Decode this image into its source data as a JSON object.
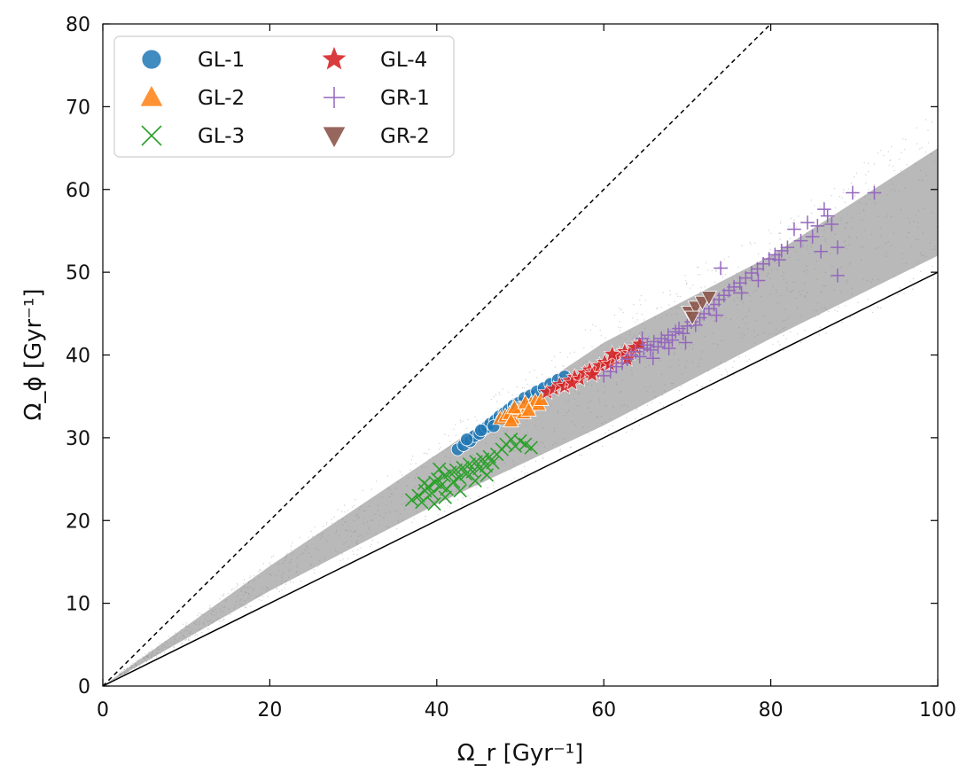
{
  "chart_data": {
    "type": "scatter",
    "title": "",
    "xlabel": "Ω_r [Gyr⁻¹]",
    "ylabel": "Ω_ϕ [Gyr⁻¹]",
    "xlim": [
      0,
      100
    ],
    "ylim": [
      0,
      80
    ],
    "xticks": [
      0,
      20,
      40,
      60,
      80,
      100
    ],
    "yticks": [
      0,
      10,
      20,
      30,
      40,
      50,
      60,
      70,
      80
    ],
    "grid": false,
    "legend_position": "top-left",
    "reference_lines": [
      {
        "name": "dashed-line",
        "style": "dashed",
        "points": [
          [
            0,
            0
          ],
          [
            80,
            80
          ]
        ]
      },
      {
        "name": "solid-line",
        "style": "solid",
        "points": [
          [
            0,
            0
          ],
          [
            100,
            50
          ]
        ]
      }
    ],
    "background": {
      "name": "all-stars",
      "color": "#808080",
      "description": "dense grey cloud of stars between the two lines",
      "envelope_upper": [
        [
          0,
          0
        ],
        [
          20,
          14.5
        ],
        [
          40,
          28
        ],
        [
          60,
          41.5
        ],
        [
          80,
          52
        ],
        [
          100,
          65
        ]
      ],
      "envelope_lower": [
        [
          0,
          0
        ],
        [
          20,
          11.5
        ],
        [
          40,
          22
        ],
        [
          60,
          31.5
        ],
        [
          80,
          42
        ],
        [
          100,
          52
        ]
      ]
    },
    "series": [
      {
        "name": "GL-1",
        "marker": "circle",
        "color": "#1f77b4",
        "points": [
          [
            42.5,
            28.6
          ],
          [
            43.2,
            29.1
          ],
          [
            44.0,
            29.6
          ],
          [
            44.5,
            30.2
          ],
          [
            45.1,
            30.5
          ],
          [
            45.6,
            31.0
          ],
          [
            46.0,
            31.3
          ],
          [
            46.4,
            31.7
          ],
          [
            47.0,
            32.1
          ],
          [
            47.5,
            32.6
          ],
          [
            48.1,
            33.0
          ],
          [
            48.6,
            33.4
          ],
          [
            49.2,
            33.9
          ],
          [
            49.8,
            34.2
          ],
          [
            50.5,
            34.8
          ],
          [
            51.2,
            35.1
          ],
          [
            52.0,
            35.6
          ],
          [
            52.8,
            36.0
          ],
          [
            53.6,
            36.5
          ],
          [
            54.5,
            37.0
          ],
          [
            55.3,
            37.4
          ],
          [
            43.6,
            29.8
          ],
          [
            45.3,
            30.9
          ],
          [
            46.8,
            31.4
          ],
          [
            47.8,
            32.2
          ],
          [
            49.5,
            33.6
          ]
        ]
      },
      {
        "name": "GL-2",
        "marker": "triangle-up",
        "color": "#ff7f0e",
        "points": [
          [
            47.6,
            32.3
          ],
          [
            48.2,
            32.6
          ],
          [
            48.7,
            32.9
          ],
          [
            49.1,
            32.4
          ],
          [
            49.6,
            33.2
          ],
          [
            50.0,
            33.5
          ],
          [
            50.4,
            33.0
          ],
          [
            50.9,
            33.8
          ],
          [
            51.3,
            34.1
          ],
          [
            51.8,
            34.4
          ],
          [
            52.2,
            34.0
          ],
          [
            49.3,
            33.6
          ],
          [
            50.6,
            34.2
          ],
          [
            48.9,
            32.0
          ],
          [
            51.0,
            33.3
          ],
          [
            52.5,
            34.6
          ]
        ]
      },
      {
        "name": "GL-3",
        "marker": "x",
        "color": "#2ca02c",
        "points": [
          [
            37.0,
            22.5
          ],
          [
            37.8,
            23.0
          ],
          [
            38.2,
            22.2
          ],
          [
            38.6,
            23.6
          ],
          [
            39.0,
            24.1
          ],
          [
            39.4,
            23.3
          ],
          [
            39.8,
            24.6
          ],
          [
            40.1,
            25.0
          ],
          [
            40.5,
            24.2
          ],
          [
            40.9,
            25.4
          ],
          [
            41.2,
            23.8
          ],
          [
            41.6,
            25.8
          ],
          [
            42.0,
            24.7
          ],
          [
            42.3,
            26.1
          ],
          [
            42.7,
            25.2
          ],
          [
            43.1,
            26.4
          ],
          [
            43.5,
            25.6
          ],
          [
            43.9,
            26.8
          ],
          [
            44.3,
            25.9
          ],
          [
            44.7,
            27.1
          ],
          [
            45.1,
            26.3
          ],
          [
            45.5,
            27.4
          ],
          [
            45.9,
            26.6
          ],
          [
            46.3,
            27.7
          ],
          [
            46.7,
            27.0
          ],
          [
            47.2,
            28.0
          ],
          [
            47.8,
            28.6
          ],
          [
            48.3,
            29.2
          ],
          [
            48.9,
            29.8
          ],
          [
            49.4,
            29.0
          ],
          [
            50.0,
            29.6
          ],
          [
            50.6,
            29.2
          ],
          [
            51.3,
            28.8
          ],
          [
            41.0,
            22.8
          ],
          [
            39.7,
            22.0
          ],
          [
            38.5,
            24.5
          ],
          [
            42.8,
            23.6
          ],
          [
            44.6,
            24.8
          ],
          [
            40.3,
            26.2
          ],
          [
            46.0,
            25.5
          ]
        ]
      },
      {
        "name": "GL-4",
        "marker": "star",
        "color": "#d62728",
        "points": [
          [
            53.2,
            35.5
          ],
          [
            54.0,
            35.9
          ],
          [
            54.7,
            36.4
          ],
          [
            55.3,
            36.2
          ],
          [
            55.9,
            36.9
          ],
          [
            56.5,
            37.3
          ],
          [
            57.1,
            37.1
          ],
          [
            57.7,
            37.8
          ],
          [
            58.3,
            38.2
          ],
          [
            58.9,
            38.0
          ],
          [
            59.5,
            38.7
          ],
          [
            60.1,
            39.1
          ],
          [
            60.7,
            38.9
          ],
          [
            61.3,
            39.6
          ],
          [
            61.9,
            40.0
          ],
          [
            62.5,
            40.4
          ],
          [
            63.1,
            40.2
          ],
          [
            63.7,
            40.9
          ],
          [
            64.3,
            41.3
          ],
          [
            56.2,
            36.6
          ],
          [
            58.6,
            37.6
          ],
          [
            61.0,
            40.1
          ],
          [
            62.8,
            39.5
          ]
        ]
      },
      {
        "name": "GR-1",
        "marker": "plus",
        "color": "#9467bd",
        "points": [
          [
            60.0,
            37.5
          ],
          [
            60.8,
            38.0
          ],
          [
            61.5,
            38.6
          ],
          [
            62.2,
            39.0
          ],
          [
            62.8,
            39.5
          ],
          [
            63.3,
            40.0
          ],
          [
            63.8,
            40.4
          ],
          [
            64.3,
            39.8
          ],
          [
            64.8,
            40.8
          ],
          [
            65.2,
            41.2
          ],
          [
            65.6,
            40.6
          ],
          [
            66.0,
            41.6
          ],
          [
            66.5,
            41.0
          ],
          [
            66.9,
            42.0
          ],
          [
            67.3,
            41.5
          ],
          [
            67.7,
            42.4
          ],
          [
            68.2,
            41.8
          ],
          [
            68.6,
            42.8
          ],
          [
            69.0,
            43.2
          ],
          [
            69.5,
            42.6
          ],
          [
            70.0,
            43.5
          ],
          [
            70.5,
            44.0
          ],
          [
            71.0,
            43.6
          ],
          [
            71.5,
            44.5
          ],
          [
            72.0,
            45.0
          ],
          [
            72.6,
            45.6
          ],
          [
            73.2,
            46.1
          ],
          [
            73.8,
            46.7
          ],
          [
            74.4,
            47.2
          ],
          [
            75.0,
            47.8
          ],
          [
            75.6,
            48.2
          ],
          [
            76.3,
            48.7
          ],
          [
            77.0,
            49.3
          ],
          [
            77.7,
            49.9
          ],
          [
            78.4,
            50.4
          ],
          [
            79.1,
            51.0
          ],
          [
            79.8,
            51.6
          ],
          [
            80.5,
            52.1
          ],
          [
            81.3,
            52.6
          ],
          [
            82.0,
            53.0
          ],
          [
            82.8,
            55.2
          ],
          [
            83.6,
            53.8
          ],
          [
            84.4,
            56.0
          ],
          [
            85.0,
            54.3
          ],
          [
            85.6,
            55.6
          ],
          [
            86.0,
            52.5
          ],
          [
            86.4,
            57.6
          ],
          [
            86.8,
            56.8
          ],
          [
            87.3,
            55.8
          ],
          [
            88.0,
            53.0
          ],
          [
            88.0,
            49.6
          ],
          [
            89.8,
            59.6
          ],
          [
            92.4,
            59.6
          ],
          [
            74.0,
            50.5
          ],
          [
            76.5,
            47.5
          ],
          [
            78.5,
            49.0
          ],
          [
            81.0,
            51.5
          ],
          [
            73.5,
            44.8
          ],
          [
            69.8,
            41.5
          ],
          [
            67.8,
            40.8
          ],
          [
            65.9,
            39.6
          ],
          [
            64.6,
            42.0
          ]
        ]
      },
      {
        "name": "GR-2",
        "marker": "triangle-down",
        "color": "#8c564b",
        "points": [
          [
            70.2,
            45.2
          ],
          [
            71.0,
            45.8
          ],
          [
            71.8,
            46.4
          ],
          [
            72.6,
            47.0
          ],
          [
            70.6,
            44.6
          ]
        ]
      }
    ]
  }
}
